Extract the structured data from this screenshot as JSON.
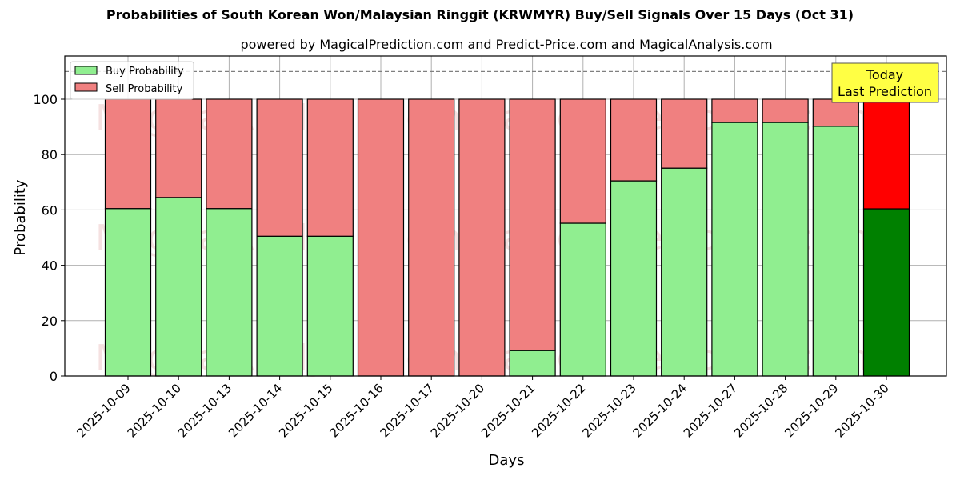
{
  "header": {
    "title": "Probabilities of South Korean Won/Malaysian Ringgit (KRWMYR) Buy/Sell Signals Over 15 Days (Oct 31)",
    "subtitle": "powered by MagicalPrediction.com and Predict-Price.com and MagicalAnalysis.com"
  },
  "legend": {
    "buy_label": "Buy Probability",
    "sell_label": "Sell Probability"
  },
  "annotation": {
    "line1": "Today",
    "line2": "Last Prediction"
  },
  "axes": {
    "xlabel": "Days",
    "ylabel": "Probability",
    "yticks": [
      "0",
      "20",
      "40",
      "60",
      "80",
      "100"
    ]
  },
  "watermarks": [
    "MagicalAnalysis.com",
    "MagicalPrediction.com"
  ],
  "colors": {
    "buy": "#90ee90",
    "sell": "#f08080",
    "buy_today": "#008000",
    "sell_today": "#ff0000",
    "annotation_bg": "#ffff44",
    "dashed_line": "#808080"
  },
  "chart_data": {
    "type": "bar",
    "stacked": true,
    "title": "Probabilities of South Korean Won/Malaysian Ringgit (KRWMYR) Buy/Sell Signals Over 15 Days (Oct 31)",
    "subtitle": "powered by MagicalPrediction.com and Predict-Price.com and MagicalAnalysis.com",
    "xlabel": "Days",
    "ylabel": "Probability",
    "ylim": [
      0,
      115
    ],
    "yticks": [
      0,
      20,
      40,
      60,
      80,
      100
    ],
    "grid": true,
    "legend_position": "upper left",
    "reference_line": {
      "y": 110,
      "style": "dashed",
      "color": "#808080"
    },
    "annotation": {
      "text": "Today\nLast Prediction",
      "x": "2025-10-30"
    },
    "categories": [
      "2025-10-09",
      "2025-10-10",
      "2025-10-13",
      "2025-10-14",
      "2025-10-15",
      "2025-10-16",
      "2025-10-17",
      "2025-10-20",
      "2025-10-21",
      "2025-10-22",
      "2025-10-23",
      "2025-10-24",
      "2025-10-27",
      "2025-10-28",
      "2025-10-29",
      "2025-10-30"
    ],
    "series": [
      {
        "name": "Buy Probability",
        "values": [
          60.5,
          64.5,
          60.5,
          50.5,
          50.5,
          0,
          0,
          0,
          9.2,
          55.2,
          70.5,
          75.1,
          91.6,
          91.6,
          90.2,
          60.4
        ]
      },
      {
        "name": "Sell Probability",
        "values": [
          39.5,
          35.5,
          39.5,
          49.5,
          49.5,
          100,
          100,
          100,
          90.8,
          44.8,
          29.5,
          24.9,
          8.4,
          8.4,
          9.8,
          39.6
        ]
      }
    ]
  }
}
